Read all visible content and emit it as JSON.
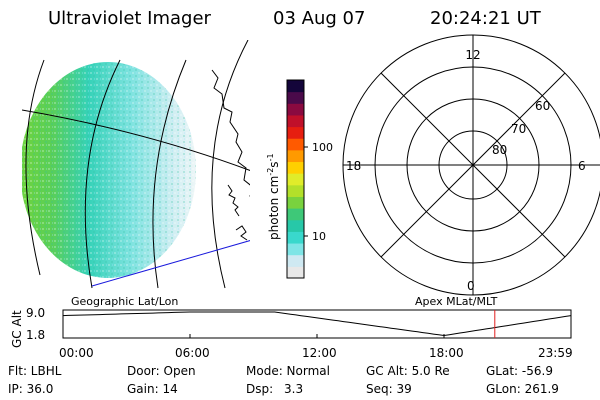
{
  "header": {
    "instrument": "Ultraviolet Imager",
    "date": "03 Aug 07",
    "time": "20:24:21 UT"
  },
  "colorbar": {
    "unit": "photon cm",
    "exp1": "-2",
    "mid": "s",
    "exp2": "-1",
    "tick_100": "100",
    "tick_10": "10",
    "colors": [
      "#e8e8e8",
      "#cfe9f2",
      "#7fe5e6",
      "#39d8cc",
      "#27c8a8",
      "#3ec878",
      "#79d23e",
      "#b3e02a",
      "#e0ec2a",
      "#ffd000",
      "#ff9a00",
      "#ff5a00",
      "#e61e10",
      "#c0102a",
      "#8a0a40",
      "#4a0a4a",
      "#14053a"
    ]
  },
  "polar": {
    "labels": {
      "top": "12",
      "left": "18",
      "right": "6",
      "bottom": "0"
    },
    "rings": [
      "80",
      "70",
      "60"
    ]
  },
  "timeline": {
    "ylabel": "GC Alt",
    "ymax": "9.0",
    "ymin": "1.8",
    "left_title": "Geographic Lat/Lon",
    "right_title": "Apex MLat/MLT",
    "ticks": [
      "00:00",
      "06:00",
      "12:00",
      "18:00",
      "23:59"
    ],
    "marker_hours": 20.4
  },
  "footer": {
    "row1": {
      "flt": "Flt: LBHL",
      "door": "Door: Open",
      "mode": "Mode: Normal",
      "gcalt": "GC Alt: 5.0 Re",
      "glat": "GLat: -56.9"
    },
    "row2": {
      "ip": "IP: 36.0",
      "gain": "Gain: 14",
      "dsp_label": "Dsp:",
      "dsp_val": "3.3",
      "seq": "Seq: 39",
      "glon": "GLon: 261.9"
    }
  }
}
